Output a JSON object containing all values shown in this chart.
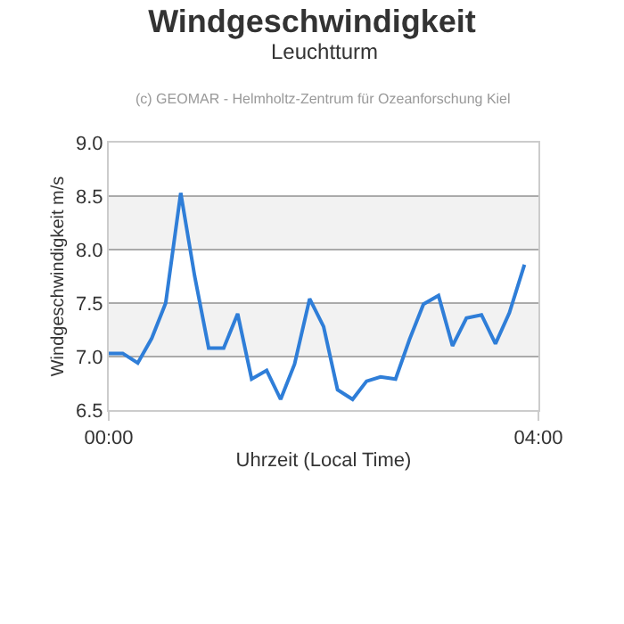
{
  "chart_data": {
    "type": "line",
    "title": "Windgeschwindigkeit",
    "subtitle": "Leuchtturm",
    "xlabel": "Uhrzeit (Local Time)",
    "ylabel": "Windgeschwindigkeit m/s",
    "annotations": [
      "(c) GEOMAR - Helmholtz-Zentrum für Ozeanforschung Kiel"
    ],
    "x": [
      0,
      0.13,
      0.27,
      0.4,
      0.53,
      0.67,
      0.8,
      0.93,
      1.07,
      1.2,
      1.33,
      1.47,
      1.6,
      1.73,
      1.87,
      2.0,
      2.13,
      2.27,
      2.4,
      2.53,
      2.67,
      2.8,
      2.93,
      3.07,
      3.2,
      3.33,
      3.47,
      3.6,
      3.73,
      3.87
    ],
    "series": [
      {
        "color": "#2f7ed8",
        "values": [
          7.03,
          7.03,
          6.94,
          7.17,
          7.5,
          8.53,
          7.75,
          7.08,
          7.08,
          7.4,
          6.79,
          6.87,
          6.6,
          6.93,
          7.54,
          7.28,
          6.69,
          6.6,
          6.77,
          6.81,
          6.79,
          7.16,
          7.49,
          7.57,
          7.1,
          7.36,
          7.39,
          7.12,
          7.41,
          7.86
        ]
      }
    ],
    "xlim": [
      0,
      4
    ],
    "xticks": [
      {
        "value": 0,
        "label": "00:00"
      },
      {
        "value": 4,
        "label": "04:00"
      }
    ],
    "ylim": [
      6.5,
      9.0
    ],
    "yticks": [
      {
        "value": 6.5,
        "label": "6.5"
      },
      {
        "value": 7.0,
        "label": "7.0"
      },
      {
        "value": 7.5,
        "label": "7.5"
      },
      {
        "value": 8.0,
        "label": "8.0"
      },
      {
        "value": 8.5,
        "label": "8.5"
      },
      {
        "value": 9.0,
        "label": "9.0"
      }
    ],
    "bands": [
      {
        "axis": "y",
        "from": 7.0,
        "to": 7.5,
        "color": "#f2f2f2"
      },
      {
        "axis": "y",
        "from": 8.0,
        "to": 8.5,
        "color": "#f2f2f2"
      }
    ],
    "grid": "y",
    "marker": "none",
    "line_style": "solid"
  }
}
